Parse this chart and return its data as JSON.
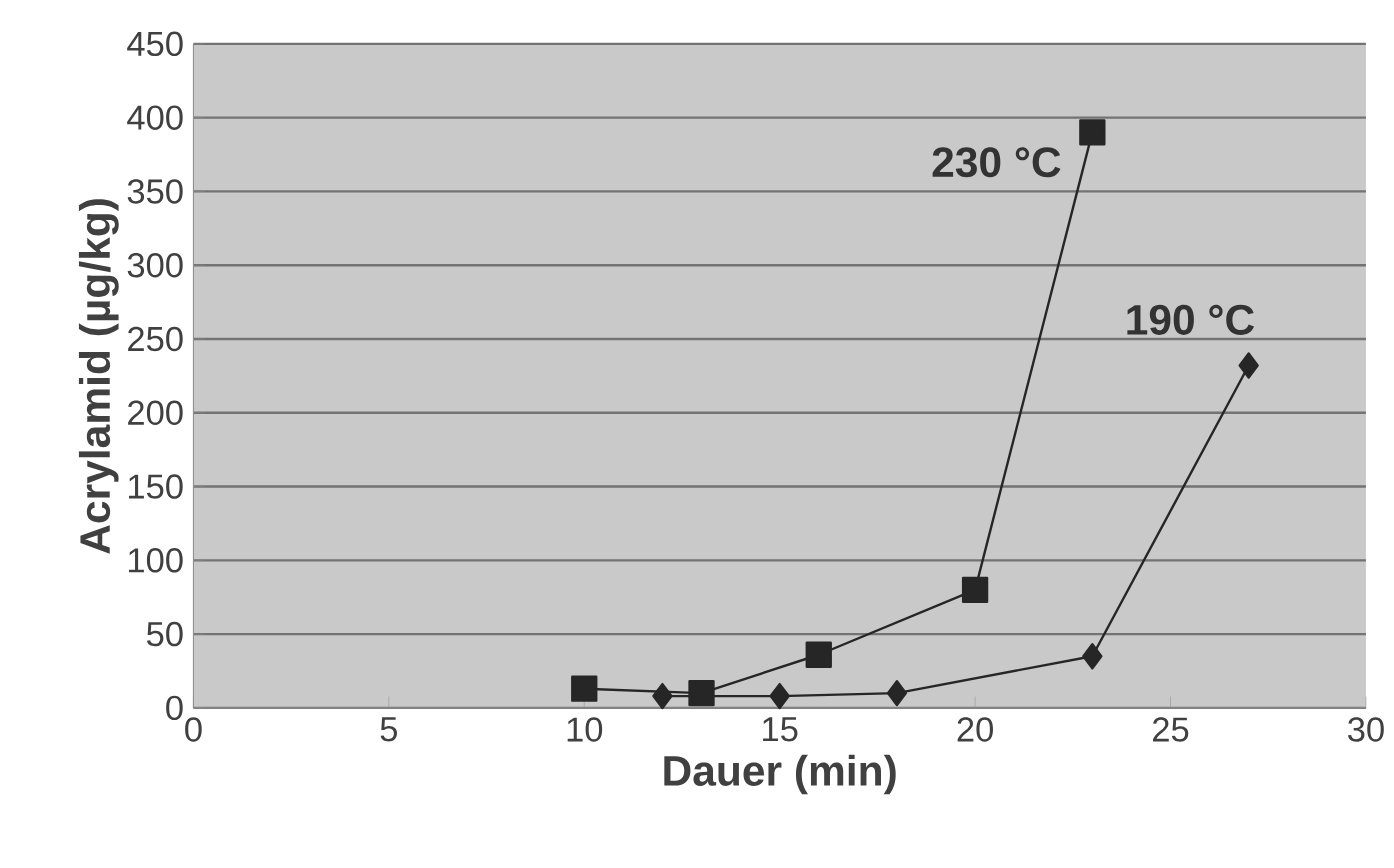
{
  "chart_data": {
    "type": "line",
    "xlabel": "Dauer (min)",
    "ylabel": "Acrylamid (µg/kg)",
    "xlim": [
      0,
      30
    ],
    "xticks": [
      0,
      5,
      10,
      15,
      20,
      25,
      30
    ],
    "ylim": [
      0,
      450
    ],
    "yticks": [
      0,
      50,
      100,
      150,
      200,
      250,
      300,
      350,
      400,
      450
    ],
    "grid": "y",
    "legend": false,
    "series": [
      {
        "name": "230 °C",
        "color": "#262626",
        "marker": "square",
        "x": [
          10,
          13,
          16,
          20,
          23
        ],
        "values": [
          13,
          10,
          36,
          80,
          390
        ]
      },
      {
        "name": "190 °C",
        "color": "#262626",
        "marker": "diamond",
        "x": [
          12,
          15,
          18,
          23,
          27
        ],
        "values": [
          8,
          8,
          10,
          35,
          232
        ]
      }
    ]
  }
}
